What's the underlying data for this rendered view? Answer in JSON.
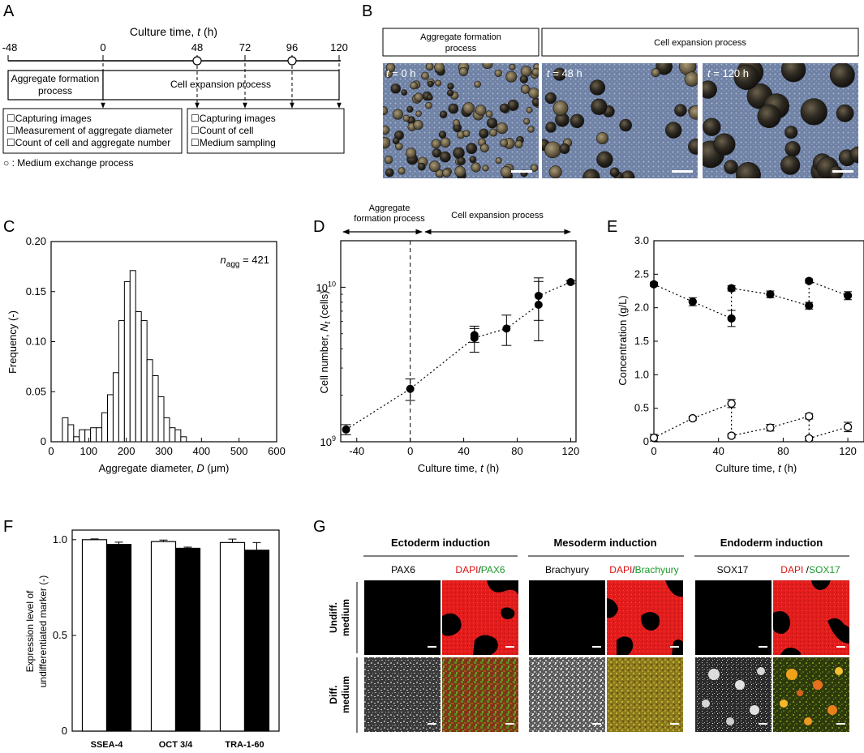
{
  "panels": {
    "A": {
      "label": "A",
      "axis_title": "Culture time,",
      "axis_var": "t",
      "axis_unit": "(h)",
      "ticks": [
        "-48",
        "0",
        "48",
        "72",
        "96",
        "120"
      ],
      "process_agg": [
        "Aggregate formation",
        "process"
      ],
      "process_exp": "Cell expansion process",
      "list_agg": [
        "☐Capturing images",
        "☐Measurement of aggregate diameter",
        "☐Count of cell and aggregate number"
      ],
      "list_exp": [
        "☐Capturing images",
        "☐Count of cell",
        "☐Medium sampling"
      ],
      "legend_text": "○ : Medium exchange process"
    },
    "B": {
      "label": "B",
      "header_agg": [
        "Aggregate formation",
        "process"
      ],
      "header_exp": "Cell expansion process",
      "images": [
        {
          "var": "t",
          "value": "= 0 h"
        },
        {
          "var": "t",
          "value": "= 48 h"
        },
        {
          "var": "t",
          "value": "= 120 h"
        }
      ]
    },
    "C": {
      "label": "C",
      "ylabel": "Frequency (-)",
      "xlabel_pre": "Aggregate diameter,",
      "xlabel_var": "D",
      "xlabel_unit": "(μm)",
      "annot_n": "n",
      "annot_sub": "agg",
      "annot_val": "= 421"
    },
    "D": {
      "label": "D",
      "ylabel_pre": "Cell number,",
      "ylabel_var": "N",
      "ylabel_sub": "t",
      "ylabel_unit": "(cells)",
      "xlabel_pre": "Culture time,",
      "xlabel_var": "t",
      "xlabel_unit": "(h)",
      "arrow_agg": [
        "Aggregate",
        "formation process"
      ],
      "arrow_exp": "Cell expansion process"
    },
    "E": {
      "label": "E",
      "ylabel": "Concentration (g/L)",
      "xlabel_pre": "Culture time,",
      "xlabel_var": "t",
      "xlabel_unit": "(h)"
    },
    "F": {
      "label": "F",
      "ylabel": [
        "Expression level of",
        "undifferentiated marker (-)"
      ]
    },
    "G": {
      "label": "G",
      "groups": [
        {
          "title": "Ectoderm induction",
          "marker": "PAX6",
          "merge_a": "DAPI",
          "merge_sep": "/",
          "merge_b": "PAX6"
        },
        {
          "title": "Mesoderm induction",
          "marker": "Brachyury",
          "merge_a": "DAPI",
          "merge_sep": "/",
          "merge_b": "Brachyury"
        },
        {
          "title": "Endoderm induction",
          "marker": "SOX17",
          "merge_a": "DAPI ",
          "merge_sep": "/",
          "merge_b": "SOX17"
        }
      ],
      "row_labels": [
        [
          "Undiff.",
          "medium"
        ],
        [
          "Diff.",
          "medium"
        ]
      ]
    }
  },
  "chart_data": [
    {
      "id": "C",
      "type": "bar",
      "ylabel": "Frequency (-)",
      "xlim": [
        0,
        600
      ],
      "ylim": [
        0,
        0.2
      ],
      "x_ticks": [
        0,
        100,
        200,
        300,
        400,
        500,
        600
      ],
      "y_ticks": [
        0,
        0.05,
        0.1,
        0.15,
        0.2
      ],
      "y_tick_labels": [
        "0",
        "0.05",
        "0.10",
        "0.15",
        "0.20"
      ],
      "bin_width": 15,
      "bin_starts": [
        30,
        45,
        60,
        75,
        90,
        105,
        120,
        135,
        150,
        165,
        180,
        195,
        210,
        225,
        240,
        255,
        270,
        285,
        300,
        315,
        330,
        345
      ],
      "values": [
        0.024,
        0.017,
        0.005,
        0.012,
        0.012,
        0.014,
        0.014,
        0.029,
        0.047,
        0.069,
        0.121,
        0.16,
        0.171,
        0.13,
        0.121,
        0.082,
        0.066,
        0.045,
        0.024,
        0.014,
        0.012,
        0.005
      ]
    },
    {
      "id": "D",
      "type": "scatter",
      "y_scale": "log",
      "xlim": [
        -52,
        124
      ],
      "ylim": [
        1000000000,
        20000000000
      ],
      "x_ticks": [
        -40,
        0,
        40,
        80,
        120
      ],
      "y_ticks": [
        {
          "value": 1000000000,
          "base": "10",
          "exp": "9"
        },
        {
          "value": 10000000000,
          "base": "10",
          "exp": "10"
        }
      ],
      "boundary_x": 0,
      "series": [
        {
          "points": [
            {
              "x": -48,
              "y": 1200000000,
              "err": 90000000
            },
            {
              "x": 0,
              "y": 2200000000,
              "err": 350000000
            },
            {
              "x": 48,
              "y": 4700000000,
              "err": 900000000
            },
            {
              "x": 48,
              "y": 4900000000,
              "err": 500000000
            },
            {
              "x": 72,
              "y": 5400000000,
              "err": 1200000000
            },
            {
              "x": 96,
              "y": 7700000000,
              "err": 3200000000
            },
            {
              "x": 96,
              "y": 8800000000,
              "err": 2700000000
            },
            {
              "x": 120,
              "y": 10800000000,
              "err": 250000000
            }
          ],
          "line": [
            [
              -48,
              1200000000
            ],
            [
              0,
              2200000000
            ],
            [
              48,
              4700000000
            ],
            [
              72,
              5400000000
            ],
            [
              96,
              7700000000
            ],
            [
              96,
              8800000000
            ],
            [
              120,
              10800000000
            ]
          ]
        }
      ]
    },
    {
      "id": "E",
      "type": "scatter",
      "ylabel": "Concentration (g/L)",
      "xlim": [
        0,
        130
      ],
      "ylim": [
        0,
        3.0
      ],
      "x_ticks": [
        0,
        40,
        80,
        120
      ],
      "y_ticks": [
        0,
        0.5,
        1.0,
        1.5,
        2.0,
        2.5,
        3.0
      ],
      "y_tick_labels": [
        "0",
        "0.5",
        "1.0",
        "1.5",
        "2.0",
        "2.5",
        "3.0"
      ],
      "series": [
        {
          "marker": "filled",
          "points": [
            {
              "x": 0,
              "y": 2.35,
              "err": 0.03
            },
            {
              "x": 24,
              "y": 2.09,
              "err": 0.06
            },
            {
              "x": 48,
              "y": 1.84,
              "err": 0.12
            },
            {
              "x": 48,
              "y": 2.29,
              "err": 0.04
            },
            {
              "x": 72,
              "y": 2.2,
              "err": 0.05
            },
            {
              "x": 96,
              "y": 2.03,
              "err": 0.05
            },
            {
              "x": 96,
              "y": 2.4,
              "err": 0.03
            },
            {
              "x": 120,
              "y": 2.18,
              "err": 0.06
            }
          ],
          "segments": [
            [
              [
                0,
                2.35
              ],
              [
                24,
                2.09
              ],
              [
                48,
                1.84
              ]
            ],
            [
              [
                48,
                1.84
              ],
              [
                48,
                2.29
              ]
            ],
            [
              [
                48,
                2.29
              ],
              [
                72,
                2.2
              ],
              [
                96,
                2.03
              ]
            ],
            [
              [
                96,
                2.03
              ],
              [
                96,
                2.4
              ]
            ],
            [
              [
                96,
                2.4
              ],
              [
                120,
                2.18
              ]
            ]
          ]
        },
        {
          "marker": "open",
          "points": [
            {
              "x": 0,
              "y": 0.06,
              "err": 0.05
            },
            {
              "x": 24,
              "y": 0.35,
              "err": 0.03
            },
            {
              "x": 48,
              "y": 0.57,
              "err": 0.06
            },
            {
              "x": 48,
              "y": 0.09,
              "err": 0.03
            },
            {
              "x": 72,
              "y": 0.21,
              "err": 0.05
            },
            {
              "x": 96,
              "y": 0.38,
              "err": 0.04
            },
            {
              "x": 96,
              "y": 0.05,
              "err": 0.03
            },
            {
              "x": 120,
              "y": 0.22,
              "err": 0.07
            }
          ],
          "segments": [
            [
              [
                0,
                0.06
              ],
              [
                24,
                0.35
              ],
              [
                48,
                0.57
              ]
            ],
            [
              [
                48,
                0.57
              ],
              [
                48,
                0.09
              ]
            ],
            [
              [
                48,
                0.09
              ],
              [
                72,
                0.21
              ],
              [
                96,
                0.38
              ]
            ],
            [
              [
                96,
                0.38
              ],
              [
                96,
                0.05
              ]
            ],
            [
              [
                96,
                0.05
              ],
              [
                120,
                0.22
              ]
            ]
          ]
        }
      ]
    },
    {
      "id": "F",
      "type": "bar",
      "ylim": [
        0,
        1.05
      ],
      "y_ticks": [
        0,
        0.5,
        1.0
      ],
      "y_tick_labels": [
        "0",
        "0.5",
        "1.0"
      ],
      "categories": [
        "SSEA-4",
        "OCT 3/4",
        "TRA-1-60"
      ],
      "series": [
        {
          "fill": "#ffffff",
          "values": [
            1.0,
            0.99,
            0.985
          ],
          "err": [
            0.004,
            0.008,
            0.018
          ]
        },
        {
          "fill": "#000000",
          "values": [
            0.975,
            0.955,
            0.945
          ],
          "err": [
            0.012,
            0.006,
            0.04
          ]
        }
      ]
    }
  ]
}
